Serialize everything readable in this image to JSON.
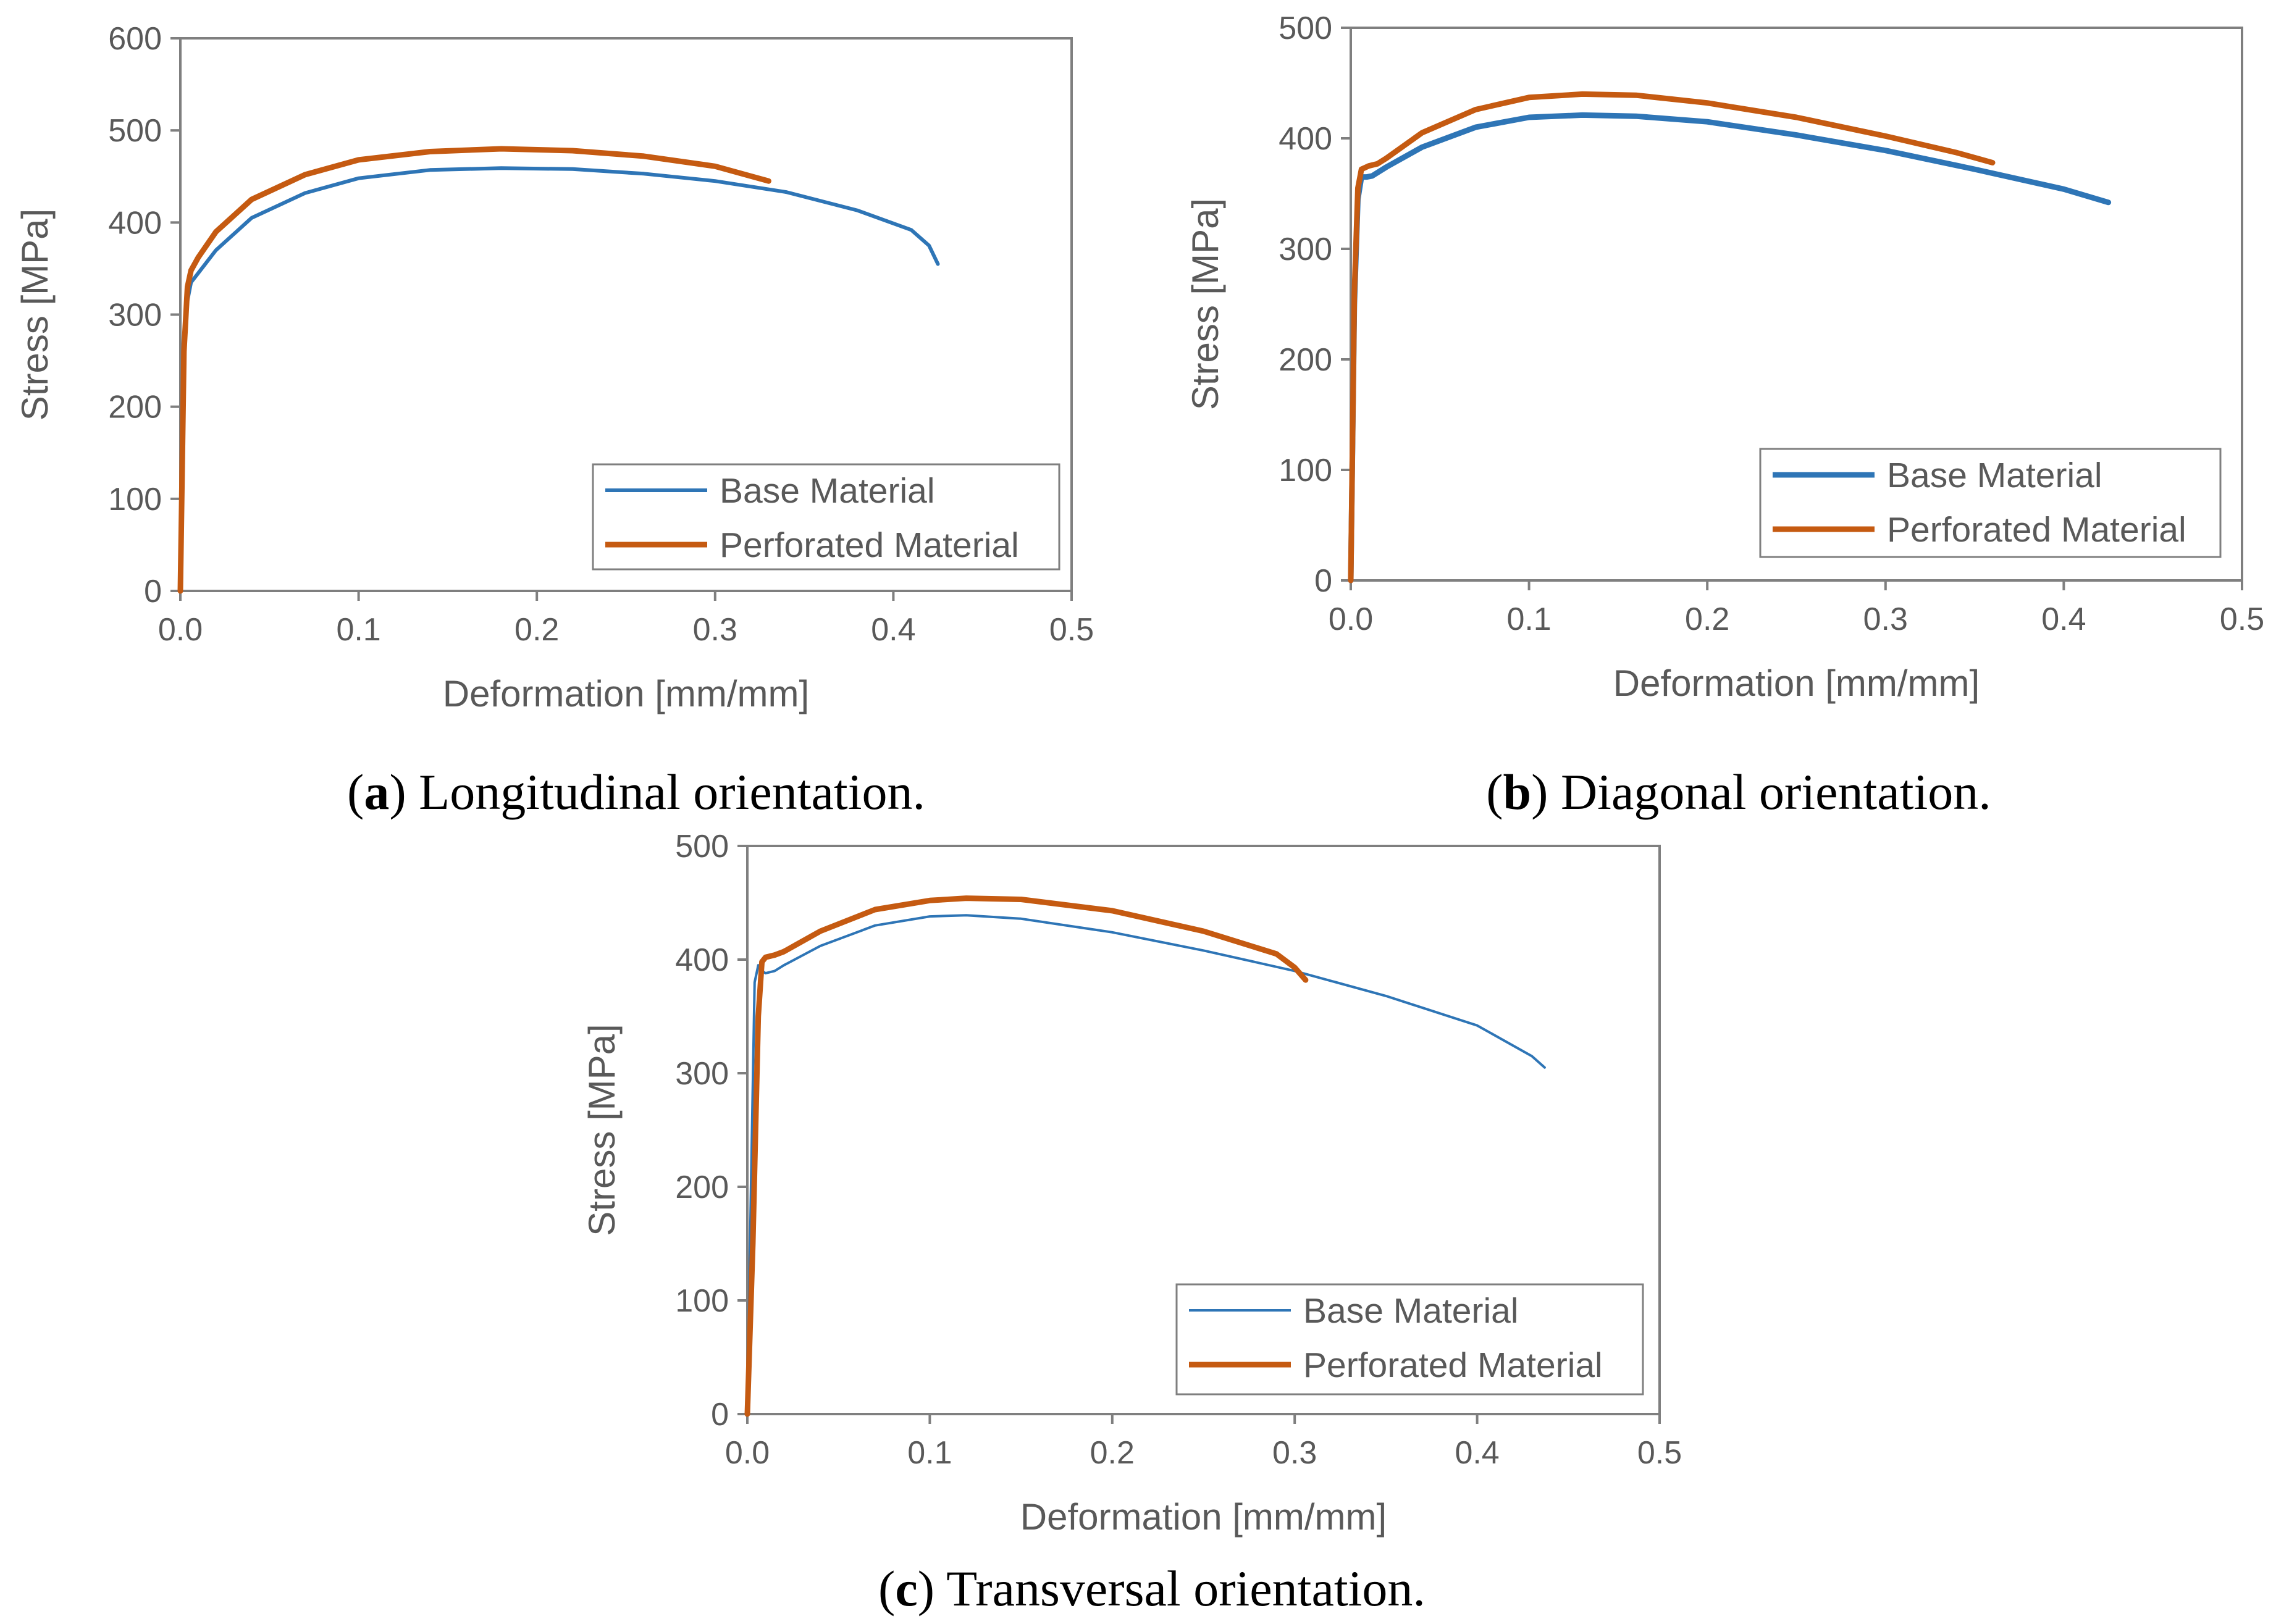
{
  "figure": {
    "captions": [
      {
        "letter": "a",
        "open": "(",
        "close": ") Longitudinal orientation."
      },
      {
        "letter": "b",
        "open": "(",
        "close": ") Diagonal orientation."
      },
      {
        "letter": "c",
        "open": "(",
        "close": ") Transversal orientation."
      }
    ]
  },
  "colors": {
    "base": "#2e75b6",
    "perforated": "#c55a11",
    "axis": "#7f7f7f",
    "text": "#595959"
  },
  "chart_data": [
    {
      "id": "a",
      "type": "line",
      "title": "",
      "xlabel": "Deformation [mm/mm]",
      "ylabel": "Stress [MPa]",
      "xlim": [
        0,
        0.5
      ],
      "ylim": [
        0,
        600
      ],
      "xticks": [
        0,
        0.1,
        0.2,
        0.3,
        0.4,
        0.5
      ],
      "xtick_labels": [
        "0.0",
        "0.1",
        "0.2",
        "0.3",
        "0.4",
        "0.5"
      ],
      "yticks": [
        0,
        100,
        200,
        300,
        400,
        500,
        600
      ],
      "ytick_labels": [
        "0",
        "100",
        "200",
        "300",
        "400",
        "500",
        "600"
      ],
      "grid": false,
      "legend_position": "bottom-right",
      "series": [
        {
          "name": "Base Material",
          "color_key": "base",
          "width": "normal",
          "x": [
            0,
            0.002,
            0.004,
            0.006,
            0.01,
            0.02,
            0.04,
            0.07,
            0.1,
            0.14,
            0.18,
            0.22,
            0.26,
            0.3,
            0.34,
            0.38,
            0.41,
            0.42,
            0.425
          ],
          "y": [
            0,
            250,
            315,
            335,
            345,
            370,
            405,
            432,
            448,
            457,
            459,
            458,
            453,
            445,
            433,
            413,
            392,
            375,
            355
          ]
        },
        {
          "name": "Perforated Material",
          "color_key": "perforated",
          "width": "thick",
          "x": [
            0,
            0.002,
            0.004,
            0.006,
            0.01,
            0.02,
            0.04,
            0.07,
            0.1,
            0.14,
            0.18,
            0.22,
            0.26,
            0.3,
            0.33
          ],
          "y": [
            0,
            260,
            330,
            348,
            362,
            390,
            425,
            452,
            468,
            477,
            480,
            478,
            472,
            461,
            445
          ]
        }
      ]
    },
    {
      "id": "b",
      "type": "line",
      "title": "",
      "xlabel": "Deformation [mm/mm]",
      "ylabel": "Stress [MPa]",
      "xlim": [
        0,
        0.5
      ],
      "ylim": [
        0,
        500
      ],
      "xticks": [
        0,
        0.1,
        0.2,
        0.3,
        0.4,
        0.5
      ],
      "xtick_labels": [
        "0.0",
        "0.1",
        "0.2",
        "0.3",
        "0.4",
        "0.5"
      ],
      "yticks": [
        0,
        100,
        200,
        300,
        400,
        500
      ],
      "ytick_labels": [
        "0",
        "100",
        "200",
        "300",
        "400",
        "500"
      ],
      "grid": false,
      "legend_position": "bottom-right",
      "series": [
        {
          "name": "Base Material",
          "color_key": "base",
          "width": "thick",
          "x": [
            0,
            0.002,
            0.004,
            0.006,
            0.009,
            0.012,
            0.02,
            0.04,
            0.07,
            0.1,
            0.13,
            0.16,
            0.2,
            0.25,
            0.3,
            0.35,
            0.4,
            0.425
          ],
          "y": [
            0,
            250,
            345,
            365,
            365,
            366,
            374,
            392,
            410,
            419,
            421,
            420,
            415,
            403,
            389,
            372,
            354,
            342
          ]
        },
        {
          "name": "Perforated Material",
          "color_key": "perforated",
          "width": "thick",
          "x": [
            0,
            0.002,
            0.004,
            0.006,
            0.01,
            0.015,
            0.02,
            0.04,
            0.07,
            0.1,
            0.13,
            0.16,
            0.2,
            0.25,
            0.3,
            0.34,
            0.36
          ],
          "y": [
            0,
            260,
            355,
            372,
            375,
            377,
            382,
            405,
            426,
            437,
            440,
            439,
            432,
            419,
            402,
            387,
            378
          ]
        }
      ]
    },
    {
      "id": "c",
      "type": "line",
      "title": "",
      "xlabel": "Deformation [mm/mm]",
      "ylabel": "Stress [MPa]",
      "xlim": [
        0,
        0.5
      ],
      "ylim": [
        0,
        500
      ],
      "xticks": [
        0,
        0.1,
        0.2,
        0.3,
        0.4,
        0.5
      ],
      "xtick_labels": [
        "0.0",
        "0.1",
        "0.2",
        "0.3",
        "0.4",
        "0.5"
      ],
      "yticks": [
        0,
        100,
        200,
        300,
        400,
        500
      ],
      "ytick_labels": [
        "0",
        "100",
        "200",
        "300",
        "400",
        "500"
      ],
      "grid": false,
      "legend_position": "bottom-right",
      "series": [
        {
          "name": "Base Material",
          "color_key": "base",
          "width": "thin",
          "x": [
            0,
            0.002,
            0.004,
            0.006,
            0.008,
            0.01,
            0.015,
            0.02,
            0.04,
            0.07,
            0.1,
            0.12,
            0.15,
            0.2,
            0.25,
            0.3,
            0.35,
            0.4,
            0.43,
            0.437
          ],
          "y": [
            0,
            200,
            380,
            395,
            390,
            388,
            390,
            395,
            412,
            430,
            438,
            439,
            436,
            424,
            408,
            390,
            368,
            342,
            315,
            305
          ]
        },
        {
          "name": "Perforated Material",
          "color_key": "perforated",
          "width": "thick",
          "x": [
            0,
            0.003,
            0.006,
            0.008,
            0.01,
            0.015,
            0.02,
            0.04,
            0.07,
            0.1,
            0.12,
            0.15,
            0.2,
            0.25,
            0.29,
            0.3,
            0.306
          ],
          "y": [
            0,
            150,
            350,
            398,
            402,
            404,
            407,
            425,
            444,
            452,
            454,
            453,
            443,
            425,
            405,
            393,
            382
          ]
        }
      ]
    }
  ]
}
